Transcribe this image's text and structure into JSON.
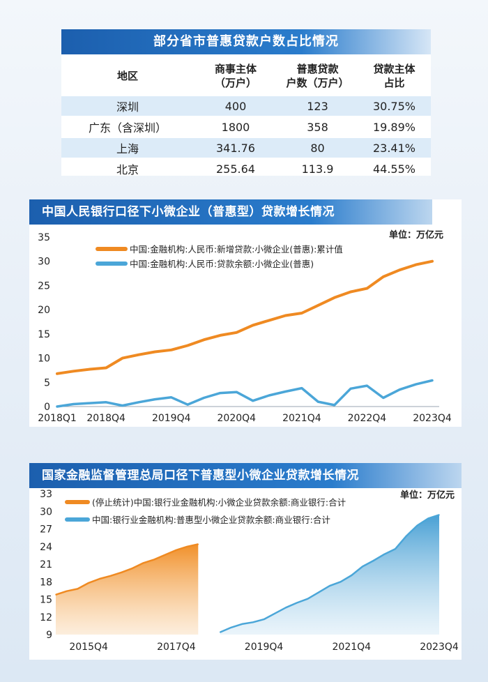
{
  "table": {
    "title": "部分省市普惠贷款户数占比情况",
    "headers": {
      "region": "地区",
      "entities_l1": "商事主体",
      "entities_l2": "（万户）",
      "loans_l1": "普惠贷款",
      "loans_l2": "户数（万户）",
      "share_l1": "贷款主体",
      "share_l2": "占比"
    },
    "rows": [
      {
        "region": "深圳",
        "entities": "400",
        "loans": "123",
        "share": "30.75%"
      },
      {
        "region": "广东（含深圳）",
        "entities": "1800",
        "loans": "358",
        "share": "19.89%"
      },
      {
        "region": "上海",
        "entities": "341.76",
        "loans": "80",
        "share": "23.41%"
      },
      {
        "region": "北京",
        "entities": "255.64",
        "loans": "113.9",
        "share": "44.55%"
      }
    ]
  },
  "colors": {
    "orange": "#ef8a22",
    "blue": "#4ba6d8",
    "header_blue": "#1c5fae",
    "row_shade": "#dcebf8"
  },
  "chart_data": [
    {
      "type": "line",
      "title": "中国人民银行口径下小微企业（普惠型）贷款增长情况",
      "unit": "单位：万亿元",
      "ylim": [
        0,
        35
      ],
      "yticks": [
        0,
        5,
        10,
        15,
        20,
        25,
        30,
        35
      ],
      "xlabels": [
        "2018Q1",
        "2018Q4",
        "2019Q4",
        "2020Q4",
        "2021Q4",
        "2022Q4",
        "2023Q4"
      ],
      "x": [
        "2018Q1",
        "2018Q2",
        "2018Q3",
        "2018Q4",
        "2019Q1",
        "2019Q2",
        "2019Q3",
        "2019Q4",
        "2020Q1",
        "2020Q2",
        "2020Q3",
        "2020Q4",
        "2021Q1",
        "2021Q2",
        "2021Q3",
        "2021Q4",
        "2022Q1",
        "2022Q2",
        "2022Q3",
        "2022Q4",
        "2023Q1",
        "2023Q2",
        "2023Q3",
        "2023Q4"
      ],
      "series": [
        {
          "name": "中国:金融机构:人民币:新增贷款:小微企业(普惠):累计值",
          "color": "#ef8a22",
          "values": [
            6.8,
            7.3,
            7.7,
            8.0,
            10.0,
            10.7,
            11.3,
            11.7,
            12.6,
            13.8,
            14.7,
            15.3,
            16.8,
            17.8,
            18.8,
            19.3,
            20.9,
            22.5,
            23.7,
            24.4,
            26.8,
            28.2,
            29.3,
            30.0
          ]
        },
        {
          "name": "中国:金融机构:人民币:贷款余额:小微企业(普惠)",
          "color": "#4ba6d8",
          "values": [
            0.0,
            0.5,
            0.7,
            0.9,
            0.2,
            0.9,
            1.5,
            1.9,
            0.4,
            1.8,
            2.8,
            3.0,
            1.2,
            2.3,
            3.1,
            3.8,
            1.0,
            0.3,
            3.7,
            4.3,
            1.8,
            3.5,
            4.6,
            5.4
          ]
        }
      ]
    },
    {
      "type": "area",
      "title": "国家金融监督管理总局口径下普惠型小微企业贷款增长情况",
      "unit": "单位：万亿元",
      "ylim": [
        9,
        33
      ],
      "yticks": [
        9,
        12,
        15,
        18,
        21,
        24,
        27,
        30,
        33
      ],
      "xlabels": [
        "2015Q4",
        "2017Q4",
        "2019Q4",
        "2021Q4",
        "2023Q4"
      ],
      "series": [
        {
          "name": "(停止统计)中国:银行业金融机构:小微企业贷款余额:商业银行:合计",
          "color": "#ef8a22",
          "x": [
            "2015Q1",
            "2015Q2",
            "2015Q3",
            "2015Q4",
            "2016Q1",
            "2016Q2",
            "2016Q3",
            "2016Q4",
            "2017Q1",
            "2017Q2",
            "2017Q3",
            "2017Q4",
            "2018Q1",
            "2018Q2"
          ],
          "values": [
            15.8,
            16.4,
            16.8,
            17.8,
            18.5,
            19.0,
            19.6,
            20.3,
            21.2,
            21.8,
            22.6,
            23.4,
            24.0,
            24.4
          ]
        },
        {
          "name": "中国:银行业金融机构:普惠型小微企业贷款余额:商业银行:合计",
          "color": "#4ba6d8",
          "x": [
            "2018Q4",
            "2019Q1",
            "2019Q2",
            "2019Q3",
            "2019Q4",
            "2020Q1",
            "2020Q2",
            "2020Q3",
            "2020Q4",
            "2021Q1",
            "2021Q2",
            "2021Q3",
            "2021Q4",
            "2022Q1",
            "2022Q2",
            "2022Q3",
            "2022Q4",
            "2023Q1",
            "2023Q2",
            "2023Q3",
            "2023Q4"
          ],
          "values": [
            9.4,
            10.2,
            10.8,
            11.1,
            11.6,
            12.6,
            13.6,
            14.4,
            15.1,
            16.2,
            17.3,
            18.0,
            19.1,
            20.6,
            21.6,
            22.7,
            23.6,
            25.8,
            27.6,
            28.8,
            29.4
          ]
        }
      ]
    }
  ]
}
